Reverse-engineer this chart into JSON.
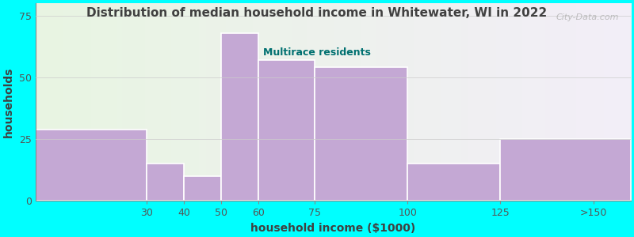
{
  "title": "Distribution of median household income in Whitewater, WI in 2022",
  "subtitle": "Multirace residents",
  "xlabel": "household income ($1000)",
  "ylabel": "households",
  "background_color": "#00FFFF",
  "plot_bg_left": "#e8f5e2",
  "plot_bg_right": "#f3eef8",
  "bar_color": "#c4a8d4",
  "bar_edge_color": "#ffffff",
  "title_color": "#404040",
  "subtitle_color": "#007070",
  "axis_label_color": "#404040",
  "tick_color": "#555555",
  "watermark": "City-Data.com",
  "x_tick_labels": [
    "30",
    "40",
    "50",
    "60",
    "75",
    "100",
    "125",
    ">150"
  ],
  "x_tick_positions": [
    30,
    40,
    50,
    60,
    75,
    100,
    125,
    150
  ],
  "bar_lefts": [
    0,
    30,
    40,
    50,
    60,
    75,
    100,
    125
  ],
  "bar_rights": [
    30,
    40,
    50,
    60,
    75,
    100,
    125,
    160
  ],
  "bar_heights": [
    29,
    15,
    10,
    68,
    57,
    54,
    15,
    25
  ],
  "xlim": [
    0,
    160
  ],
  "ylim": [
    0,
    80
  ],
  "yticks": [
    0,
    25,
    50,
    75
  ]
}
